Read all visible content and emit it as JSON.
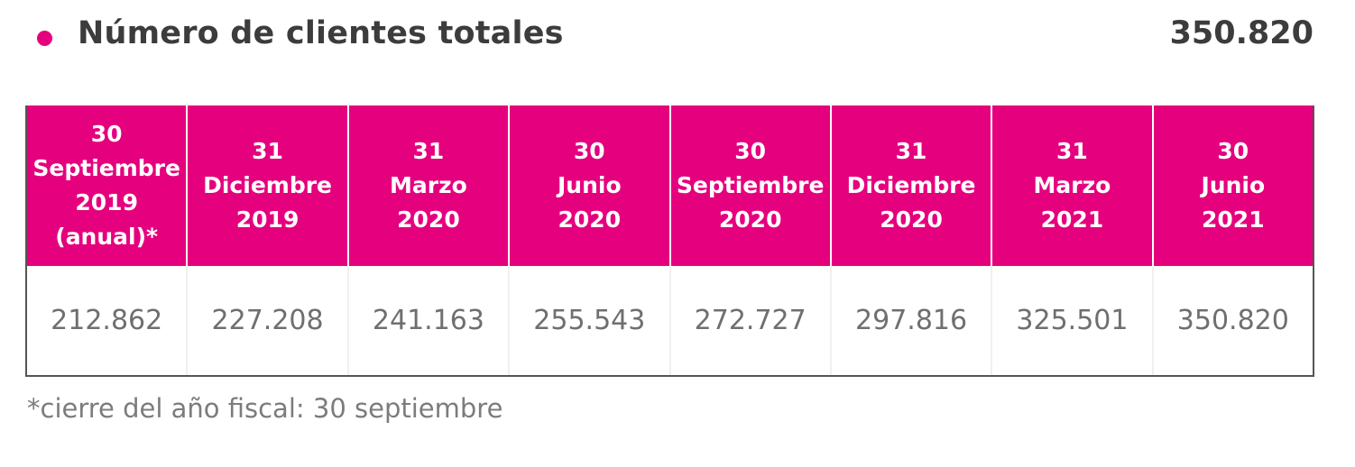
{
  "header": {
    "title": "Número de clientes totales",
    "total": "350.820",
    "bullet_color": "#e5007e"
  },
  "table": {
    "header_color": "#e5007e",
    "columns": [
      {
        "lines": [
          "30",
          "Septiembre",
          "2019",
          "(anual)*"
        ],
        "value": "212.862"
      },
      {
        "lines": [
          "31",
          "Diciembre",
          "2019"
        ],
        "value": "227.208"
      },
      {
        "lines": [
          "31",
          "Marzo",
          "2020"
        ],
        "value": "241.163"
      },
      {
        "lines": [
          "30",
          "Junio",
          "2020"
        ],
        "value": "255.543"
      },
      {
        "lines": [
          "30",
          "Septiembre",
          "2020"
        ],
        "value": "272.727"
      },
      {
        "lines": [
          "31",
          "Diciembre",
          "2020"
        ],
        "value": "297.816"
      },
      {
        "lines": [
          "31",
          "Marzo",
          "2021"
        ],
        "value": "325.501"
      },
      {
        "lines": [
          "30",
          "Junio",
          "2021"
        ],
        "value": "350.820"
      }
    ]
  },
  "footnote": "*cierre del año fiscal: 30 septiembre"
}
